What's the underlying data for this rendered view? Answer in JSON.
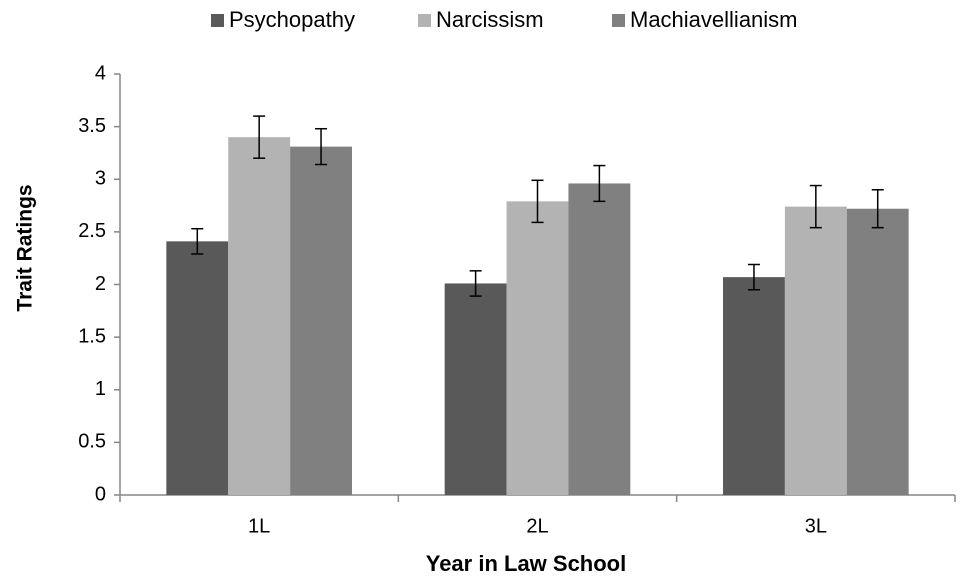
{
  "chart_data": {
    "type": "bar",
    "categories": [
      "1L",
      "2L",
      "3L"
    ],
    "series": [
      {
        "name": "Psychopathy",
        "color": "#595959",
        "values": [
          2.41,
          2.01,
          2.07
        ],
        "errors": [
          0.12,
          0.12,
          0.12
        ]
      },
      {
        "name": "Narcissism",
        "color": "#b3b3b3",
        "values": [
          3.4,
          2.79,
          2.74
        ],
        "errors": [
          0.2,
          0.2,
          0.2
        ]
      },
      {
        "name": "Machiavellianism",
        "color": "#808080",
        "values": [
          3.31,
          2.96,
          2.72
        ],
        "errors": [
          0.17,
          0.17,
          0.18
        ]
      }
    ],
    "xlabel": "Year in Law School",
    "ylabel": "Trait Ratings",
    "ylim": [
      0,
      4
    ],
    "yticks": [
      0,
      0.5,
      1,
      1.5,
      2,
      2.5,
      3,
      3.5,
      4
    ],
    "grid": false,
    "legend": "top"
  }
}
